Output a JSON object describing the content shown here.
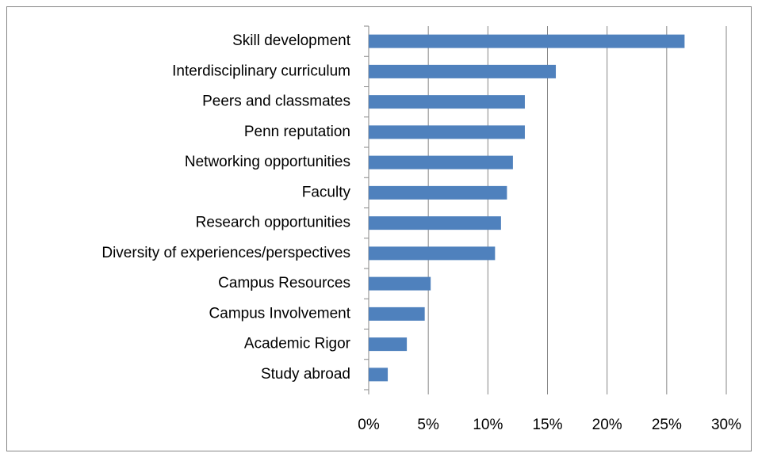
{
  "chart_data": {
    "type": "hbar",
    "categories": [
      "Skill development",
      "Interdisciplinary curriculum",
      "Peers and classmates",
      "Penn reputation",
      "Networking opportunities",
      "Faculty",
      "Research opportunities",
      "Diversity of experiences/perspectives",
      "Campus Resources",
      "Campus Involvement",
      "Academic Rigor",
      "Study abroad"
    ],
    "values": [
      26.5,
      15.7,
      13.1,
      13.1,
      12.1,
      11.6,
      11.1,
      10.6,
      5.2,
      4.7,
      3.2,
      1.6
    ],
    "color": "#4f81bd",
    "xlim": [
      0,
      30
    ],
    "xticks": [
      {
        "value": 0,
        "label": "0%"
      },
      {
        "value": 5,
        "label": "5%"
      },
      {
        "value": 10,
        "label": "10%"
      },
      {
        "value": 15,
        "label": "15%"
      },
      {
        "value": 20,
        "label": "20%"
      },
      {
        "value": 25,
        "label": "25%"
      },
      {
        "value": 30,
        "label": "30%"
      }
    ],
    "grid": true
  }
}
